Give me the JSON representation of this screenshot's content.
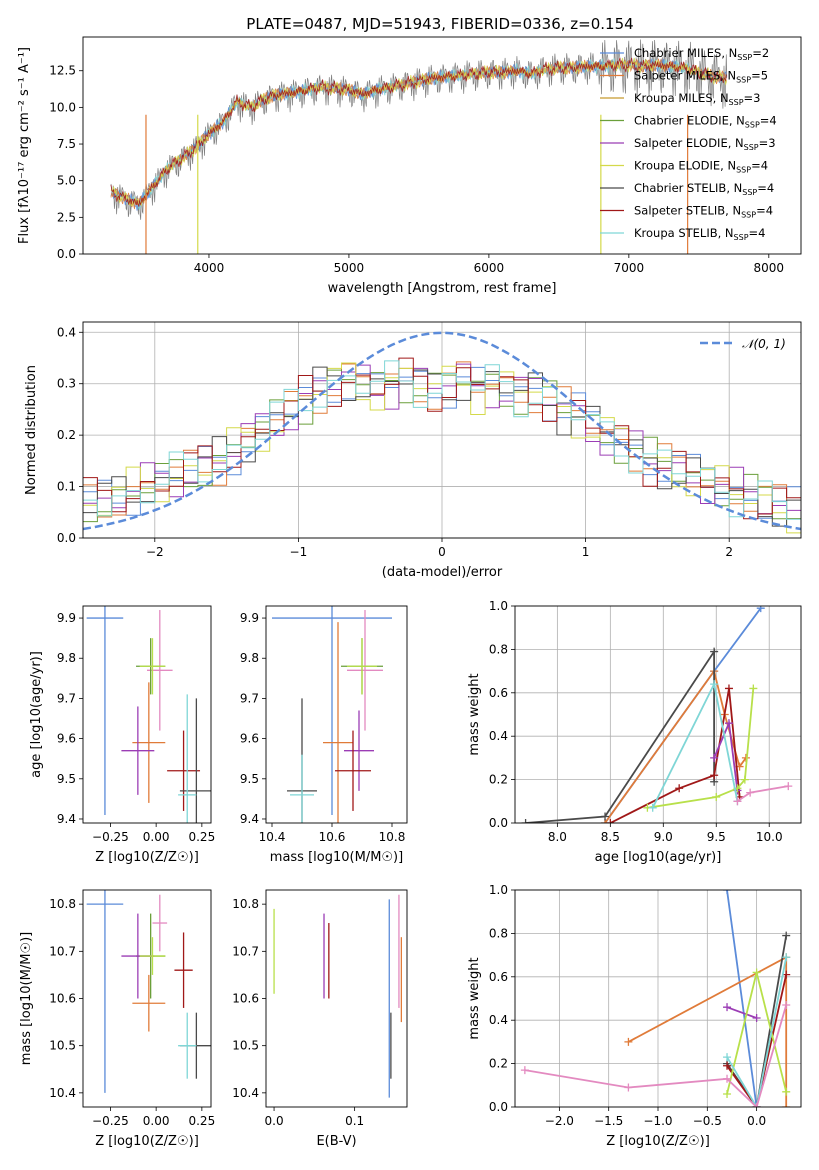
{
  "figure_title": "PLATE=0487, MJD=51943, FIBERID=0336, z=0.154",
  "palette": {
    "Chabrier MILES": "#5b8bd9",
    "Salpeter MILES": "#e07b39",
    "Kroupa MILES": "#c69a2e",
    "Chabrier ELODIE": "#6a9f3a",
    "Salpeter ELODIE": "#9b3db5",
    "Kroupa ELODIE": "#d4d94a",
    "Chabrier STELIB": "#4a4a4a",
    "Salpeter STELIB": "#a01818",
    "Kroupa STELIB": "#7fd6d6",
    "pink": "#e38ac0",
    "lime": "#b8e04a",
    "data": "#7f7f7f",
    "normal": "#5b8bd9"
  },
  "chart_data": [
    {
      "id": "spectrum",
      "type": "line",
      "title": "PLATE=0487, MJD=51943, FIBERID=0336, z=0.154",
      "xlabel": "wavelength [Angstrom, rest frame]",
      "ylabel": "Flux [fλ10⁻¹⁷ erg cm⁻² s⁻¹ A⁻¹]",
      "xlim": [
        3100,
        8230
      ],
      "ylim": [
        0,
        14.8
      ],
      "xticks": [
        4000,
        5000,
        6000,
        7000,
        8000
      ],
      "yticks": [
        0.0,
        2.5,
        5.0,
        7.5,
        10.0,
        12.5
      ],
      "spectrum_x": [
        3300,
        3400,
        3500,
        3600,
        3700,
        3800,
        3900,
        4000,
        4100,
        4200,
        4300,
        4400,
        4500,
        4600,
        4700,
        4800,
        4900,
        5000,
        5100,
        5200,
        5300,
        5400,
        5500,
        5600,
        5700,
        5800,
        5900,
        6000,
        6100,
        6200,
        6300,
        6400,
        6500,
        6600,
        6700,
        6800,
        6900,
        7000,
        7100,
        7200,
        7300,
        7400,
        7500,
        7600,
        7700
      ],
      "spectrum_y": [
        4.2,
        3.8,
        3.4,
        4.6,
        5.8,
        6.5,
        7.2,
        8.2,
        9.0,
        10.4,
        10.0,
        10.6,
        10.9,
        11.0,
        11.2,
        11.4,
        11.3,
        11.2,
        10.9,
        11.2,
        11.4,
        11.6,
        11.8,
        12.0,
        12.1,
        12.2,
        12.3,
        12.4,
        12.4,
        12.5,
        12.3,
        12.6,
        12.7,
        12.7,
        12.8,
        12.8,
        12.9,
        12.9,
        12.8,
        12.9,
        12.8,
        12.7,
        12.4,
        12.1,
        12.0
      ],
      "legend": [
        {
          "label": "Chabrier MILES",
          "n": "2",
          "color": "#5b8bd9"
        },
        {
          "label": "Salpeter MILES",
          "n": "5",
          "color": "#e07b39"
        },
        {
          "label": "Kroupa MILES",
          "n": "3",
          "color": "#c69a2e"
        },
        {
          "label": "Chabrier ELODIE",
          "n": "4",
          "color": "#6a9f3a"
        },
        {
          "label": "Salpeter ELODIE",
          "n": "3",
          "color": "#9b3db5"
        },
        {
          "label": "Kroupa ELODIE",
          "n": "4",
          "color": "#d4d94a"
        },
        {
          "label": "Chabrier STELIB",
          "n": "4",
          "color": "#4a4a4a"
        },
        {
          "label": "Salpeter STELIB",
          "n": "4",
          "color": "#a01818"
        },
        {
          "label": "Kroupa STELIB",
          "n": "4",
          "color": "#7fd6d6"
        }
      ],
      "legend_placement": "upper-right"
    },
    {
      "id": "residuals",
      "type": "bar",
      "xlabel": "(data-model)/error",
      "ylabel": "Normed distribution",
      "xlim": [
        -2.5,
        2.5
      ],
      "ylim": [
        0,
        0.42
      ],
      "xticks": [
        -2,
        -1,
        0,
        1,
        2
      ],
      "yticks": [
        0.0,
        0.1,
        0.2,
        0.3,
        0.4
      ],
      "grid": true,
      "bin_width": 0.1,
      "envelope_bins_x": [
        -2.45,
        -2.35,
        -2.25,
        -2.15,
        -2.05,
        -1.95,
        -1.85,
        -1.75,
        -1.65,
        -1.55,
        -1.45,
        -1.35,
        -1.25,
        -1.15,
        -1.05,
        -0.95,
        -0.85,
        -0.75,
        -0.65,
        -0.55,
        -0.45,
        -0.35,
        -0.25,
        -0.15,
        -0.05,
        0.05,
        0.15,
        0.25,
        0.35,
        0.45,
        0.55,
        0.65,
        0.75,
        0.85,
        0.95,
        1.05,
        1.15,
        1.25,
        1.35,
        1.45,
        1.55,
        1.65,
        1.75,
        1.85,
        1.95,
        2.05,
        2.15,
        2.25,
        2.35,
        2.45
      ],
      "envelope_y": [
        0.07,
        0.07,
        0.08,
        0.09,
        0.1,
        0.11,
        0.12,
        0.13,
        0.14,
        0.15,
        0.17,
        0.19,
        0.21,
        0.23,
        0.25,
        0.27,
        0.29,
        0.3,
        0.31,
        0.3,
        0.29,
        0.3,
        0.31,
        0.3,
        0.29,
        0.3,
        0.31,
        0.29,
        0.3,
        0.29,
        0.28,
        0.29,
        0.27,
        0.25,
        0.24,
        0.22,
        0.2,
        0.19,
        0.17,
        0.15,
        0.14,
        0.13,
        0.12,
        0.11,
        0.1,
        0.09,
        0.08,
        0.07,
        0.06,
        0.05
      ],
      "normal_curve": {
        "label": "𝒩(0, 1)",
        "color": "#5b8bd9",
        "style": "dashed"
      },
      "legend_placement": "upper-right"
    },
    {
      "id": "age_vs_Z",
      "type": "scatter",
      "xlabel": "Z [log10(Z/Z☉)]",
      "ylabel": "age  [log10(age/yr)]",
      "xlim": [
        -0.4,
        0.3
      ],
      "ylim": [
        9.39,
        9.93
      ],
      "xticks": [
        -0.25,
        0.0,
        0.25
      ],
      "yticks": [
        9.4,
        9.5,
        9.6,
        9.7,
        9.8,
        9.9
      ],
      "points": [
        {
          "x": -0.28,
          "y": 9.9,
          "xerr": 0.1,
          "yerr": 0.49,
          "color": "#5b8bd9"
        },
        {
          "x": -0.04,
          "y": 9.59,
          "xerr": 0.09,
          "yerr": 0.15,
          "color": "#e07b39"
        },
        {
          "x": 0.02,
          "y": 9.77,
          "xerr": 0.07,
          "yerr": 0.15,
          "color": "#e38ac0"
        },
        {
          "x": -0.03,
          "y": 9.78,
          "xerr": 0.08,
          "yerr": 0.07,
          "color": "#6a9f3a"
        },
        {
          "x": -0.1,
          "y": 9.57,
          "xerr": 0.09,
          "yerr": 0.11,
          "color": "#9b3db5"
        },
        {
          "x": 0.15,
          "y": 9.52,
          "xerr": 0.09,
          "yerr": 0.1,
          "color": "#a01818"
        },
        {
          "x": 0.22,
          "y": 9.47,
          "xerr": 0.09,
          "yerr": 0.23,
          "color": "#4a4a4a"
        },
        {
          "x": 0.17,
          "y": 9.46,
          "xerr": 0.05,
          "yerr": 0.25,
          "color": "#7fd6d6"
        },
        {
          "x": -0.02,
          "y": 9.78,
          "xerr": 0.07,
          "yerr": 0.07,
          "color": "#b8e04a"
        }
      ]
    },
    {
      "id": "age_vs_mass",
      "type": "scatter",
      "xlabel": "mass [log10(M/M☉)]",
      "ylabel": "",
      "xlim": [
        10.38,
        10.85
      ],
      "ylim": [
        9.39,
        9.93
      ],
      "xticks": [
        10.4,
        10.6,
        10.8
      ],
      "yticks": [
        9.4,
        9.5,
        9.6,
        9.7,
        9.8,
        9.9
      ],
      "points": [
        {
          "x": 10.6,
          "y": 9.9,
          "xerr": 0.2,
          "yerr": 0.49,
          "color": "#5b8bd9"
        },
        {
          "x": 10.62,
          "y": 9.59,
          "xerr": 0.05,
          "yerr": 0.3,
          "color": "#e07b39"
        },
        {
          "x": 10.71,
          "y": 9.77,
          "xerr": 0.06,
          "yerr": 0.15,
          "color": "#e38ac0"
        },
        {
          "x": 10.7,
          "y": 9.78,
          "xerr": 0.07,
          "yerr": 0.07,
          "color": "#6a9f3a"
        },
        {
          "x": 10.69,
          "y": 9.57,
          "xerr": 0.05,
          "yerr": 0.1,
          "color": "#9b3db5"
        },
        {
          "x": 10.67,
          "y": 9.52,
          "xerr": 0.06,
          "yerr": 0.1,
          "color": "#a01818"
        },
        {
          "x": 10.5,
          "y": 9.47,
          "xerr": 0.05,
          "yerr": 0.23,
          "color": "#4a4a4a"
        },
        {
          "x": 10.5,
          "y": 9.46,
          "xerr": 0.04,
          "yerr": 0.1,
          "color": "#7fd6d6"
        },
        {
          "x": 10.7,
          "y": 9.78,
          "xerr": 0.05,
          "yerr": 0.07,
          "color": "#b8e04a"
        }
      ]
    },
    {
      "id": "mass_weight_vs_age",
      "type": "line",
      "xlabel": "age  [log10(age/yr)]",
      "ylabel": "mass weight",
      "xlim": [
        7.6,
        10.3
      ],
      "ylim": [
        0.0,
        1.0
      ],
      "xticks": [
        8.0,
        8.5,
        9.0,
        9.5,
        10.0
      ],
      "yticks": [
        0.0,
        0.2,
        0.4,
        0.6,
        0.8,
        1.0
      ],
      "grid": true,
      "series": [
        {
          "color": "#5b8bd9",
          "x": [
            8.45,
            9.48,
            9.92
          ],
          "y": [
            0.0,
            0.7,
            0.99
          ]
        },
        {
          "color": "#e07b39",
          "x": [
            8.45,
            9.48,
            9.58,
            9.72,
            9.78
          ],
          "y": [
            0.0,
            0.7,
            0.5,
            0.26,
            0.3
          ]
        },
        {
          "color": "#4a4a4a",
          "x": [
            7.7,
            8.45,
            9.48,
            9.48
          ],
          "y": [
            0.0,
            0.03,
            0.79,
            0.19
          ]
        },
        {
          "color": "#a01818",
          "x": [
            8.5,
            9.15,
            9.48,
            9.62,
            9.72
          ],
          "y": [
            0.0,
            0.16,
            0.22,
            0.62,
            0.12
          ]
        },
        {
          "color": "#9b3db5",
          "x": [
            9.48,
            9.62,
            9.7
          ],
          "y": [
            0.3,
            0.46,
            0.15
          ]
        },
        {
          "color": "#b8e04a",
          "x": [
            8.85,
            9.5,
            9.7,
            9.77,
            9.85
          ],
          "y": [
            0.07,
            0.12,
            0.16,
            0.2,
            0.62
          ]
        },
        {
          "color": "#7fd6d6",
          "x": [
            8.9,
            9.48,
            9.7
          ],
          "y": [
            0.07,
            0.64,
            0.1
          ]
        },
        {
          "color": "#e38ac0",
          "x": [
            9.7,
            9.82,
            10.18
          ],
          "y": [
            0.1,
            0.14,
            0.17
          ]
        }
      ]
    },
    {
      "id": "mass_vs_Z",
      "type": "scatter",
      "xlabel": "Z [log10(Z/Z☉)]",
      "ylabel": "mass [log10(M/M☉)]",
      "xlim": [
        -0.4,
        0.3
      ],
      "ylim": [
        10.37,
        10.83
      ],
      "xticks": [
        -0.25,
        0.0,
        0.25
      ],
      "yticks": [
        10.4,
        10.5,
        10.6,
        10.7,
        10.8
      ],
      "points": [
        {
          "x": -0.28,
          "y": 10.8,
          "xerr": 0.1,
          "yerr": 0.4,
          "color": "#5b8bd9"
        },
        {
          "x": -0.04,
          "y": 10.59,
          "xerr": 0.09,
          "yerr": 0.06,
          "color": "#e07b39"
        },
        {
          "x": 0.02,
          "y": 10.76,
          "xerr": 0.04,
          "yerr": 0.06,
          "color": "#e38ac0"
        },
        {
          "x": -0.03,
          "y": 10.69,
          "xerr": 0.08,
          "yerr": 0.09,
          "color": "#6a9f3a"
        },
        {
          "x": -0.1,
          "y": 10.69,
          "xerr": 0.09,
          "yerr": 0.09,
          "color": "#9b3db5"
        },
        {
          "x": 0.15,
          "y": 10.66,
          "xerr": 0.05,
          "yerr": 0.08,
          "color": "#a01818"
        },
        {
          "x": 0.22,
          "y": 10.5,
          "xerr": 0.09,
          "yerr": 0.07,
          "color": "#4a4a4a"
        },
        {
          "x": 0.17,
          "y": 10.5,
          "xerr": 0.05,
          "yerr": 0.07,
          "color": "#7fd6d6"
        },
        {
          "x": -0.02,
          "y": 10.69,
          "xerr": 0.07,
          "yerr": 0.04,
          "color": "#b8e04a"
        }
      ]
    },
    {
      "id": "mass_vs_ebv",
      "type": "scatter",
      "xlabel": "E(B-V)",
      "ylabel": "",
      "xlim": [
        -0.01,
        0.165
      ],
      "ylim": [
        10.37,
        10.83
      ],
      "xticks": [
        0.0,
        0.1
      ],
      "yticks": [
        10.4,
        10.5,
        10.6,
        10.7,
        10.8
      ],
      "points": [
        {
          "x": 0.0,
          "y": 10.7,
          "xerr": 0,
          "yerr": 0.09,
          "color": "#b8e04a"
        },
        {
          "x": 0.062,
          "y": 10.69,
          "xerr": 0,
          "yerr": 0.09,
          "color": "#9b3db5"
        },
        {
          "x": 0.068,
          "y": 10.68,
          "xerr": 0,
          "yerr": 0.08,
          "color": "#a01818"
        },
        {
          "x": 0.143,
          "y": 10.6,
          "xerr": 0,
          "yerr": 0.21,
          "color": "#5b8bd9"
        },
        {
          "x": 0.145,
          "y": 10.5,
          "xerr": 0,
          "yerr": 0.07,
          "color": "#4a4a4a"
        },
        {
          "x": 0.155,
          "y": 10.7,
          "xerr": 0,
          "yerr": 0.12,
          "color": "#e38ac0"
        },
        {
          "x": 0.158,
          "y": 10.64,
          "xerr": 0,
          "yerr": 0.09,
          "color": "#e07b39"
        }
      ]
    },
    {
      "id": "mass_weight_vs_Z",
      "type": "line",
      "xlabel": "Z [log10(Z/Z☉)]",
      "ylabel": "mass weight",
      "xlim": [
        -2.45,
        0.45
      ],
      "ylim": [
        0.0,
        1.0
      ],
      "xticks": [
        -2.0,
        -1.5,
        -1.0,
        -0.5,
        0.0
      ],
      "yticks": [
        0.0,
        0.2,
        0.4,
        0.6,
        0.8,
        1.0
      ],
      "grid": true,
      "series": [
        {
          "color": "#5b8bd9",
          "x": [
            -0.3,
            0.0
          ],
          "y": [
            1.0,
            0.0
          ]
        },
        {
          "color": "#e07b39",
          "x": [
            -1.3,
            0.3,
            0.3
          ],
          "y": [
            0.3,
            0.69,
            0.0
          ]
        },
        {
          "color": "#4a4a4a",
          "x": [
            -0.3,
            0.0,
            0.3
          ],
          "y": [
            0.2,
            0.0,
            0.79
          ]
        },
        {
          "color": "#a01818",
          "x": [
            -0.3,
            0.0,
            0.3
          ],
          "y": [
            0.19,
            0.0,
            0.61
          ]
        },
        {
          "color": "#9b3db5",
          "x": [
            -0.3,
            0.0
          ],
          "y": [
            0.46,
            0.41
          ]
        },
        {
          "color": "#b8e04a",
          "x": [
            -0.3,
            0.0,
            0.3
          ],
          "y": [
            0.06,
            0.62,
            0.07
          ]
        },
        {
          "color": "#7fd6d6",
          "x": [
            -0.3,
            0.0,
            0.3
          ],
          "y": [
            0.23,
            0.0,
            0.69
          ]
        },
        {
          "color": "#e38ac0",
          "x": [
            -2.35,
            -1.3,
            -0.3,
            0.0,
            0.3
          ],
          "y": [
            0.17,
            0.09,
            0.13,
            0.0,
            0.47
          ]
        }
      ]
    }
  ]
}
